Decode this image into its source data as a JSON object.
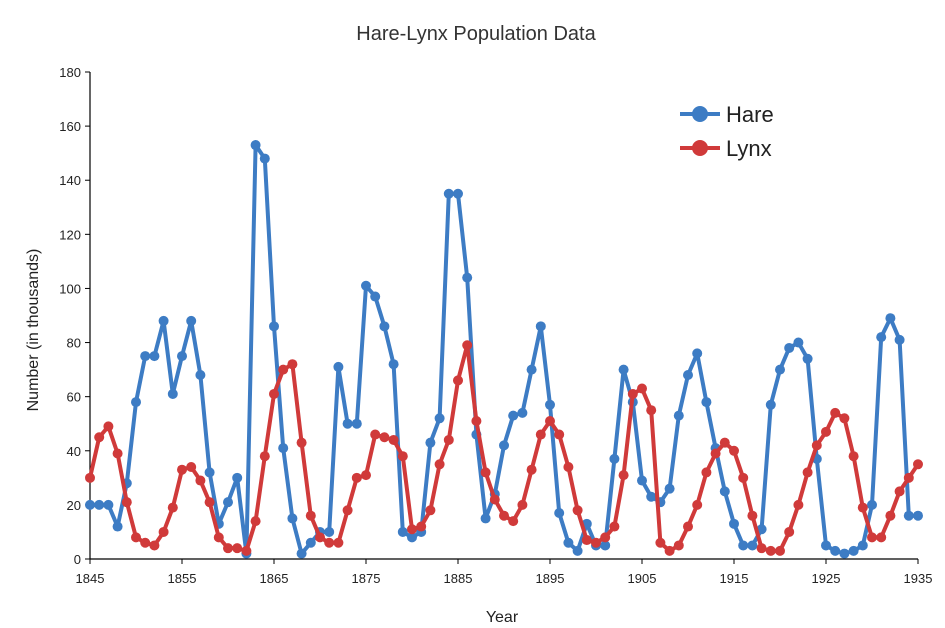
{
  "chart_data": {
    "type": "line",
    "title": "Hare-Lynx Population Data",
    "xlabel": "Year",
    "ylabel": "Number (in thousands)",
    "xlim": [
      1845,
      1935
    ],
    "ylim": [
      0,
      180
    ],
    "x_ticks": [
      1845,
      1855,
      1865,
      1875,
      1885,
      1895,
      1905,
      1915,
      1925,
      1935
    ],
    "y_ticks": [
      0,
      20,
      40,
      60,
      80,
      100,
      120,
      140,
      160,
      180
    ],
    "grid": false,
    "legend_position": "top-right",
    "x": [
      1845,
      1846,
      1847,
      1848,
      1849,
      1850,
      1851,
      1852,
      1853,
      1854,
      1855,
      1856,
      1857,
      1858,
      1859,
      1860,
      1861,
      1862,
      1863,
      1864,
      1865,
      1866,
      1867,
      1868,
      1869,
      1870,
      1871,
      1872,
      1873,
      1874,
      1875,
      1876,
      1877,
      1878,
      1879,
      1880,
      1881,
      1882,
      1883,
      1884,
      1885,
      1886,
      1887,
      1888,
      1889,
      1890,
      1891,
      1892,
      1893,
      1894,
      1895,
      1896,
      1897,
      1898,
      1899,
      1900,
      1901,
      1902,
      1903,
      1904,
      1905,
      1906,
      1907,
      1908,
      1909,
      1910,
      1911,
      1912,
      1913,
      1914,
      1915,
      1916,
      1917,
      1918,
      1919,
      1920,
      1921,
      1922,
      1923,
      1924,
      1925,
      1926,
      1927,
      1928,
      1929,
      1930,
      1931,
      1932,
      1933,
      1934,
      1935
    ],
    "series": [
      {
        "name": "Hare",
        "color": "#3d7cc4",
        "values": [
          20,
          20,
          20,
          12,
          28,
          58,
          75,
          75,
          88,
          61,
          75,
          88,
          68,
          32,
          13,
          21,
          30,
          2,
          153,
          148,
          86,
          41,
          15,
          2,
          6,
          10,
          10,
          71,
          50,
          50,
          101,
          97,
          86,
          72,
          10,
          8,
          10,
          43,
          52,
          135,
          135,
          104,
          46,
          15,
          24,
          42,
          53,
          54,
          70,
          86,
          57,
          17,
          6,
          3,
          13,
          5,
          5,
          37,
          70,
          58,
          29,
          23,
          21,
          26,
          53,
          68,
          76,
          58,
          41,
          25,
          13,
          5,
          5,
          11,
          57,
          70,
          78,
          80,
          74,
          37,
          5,
          3,
          2,
          3,
          5,
          20,
          82,
          89,
          81,
          16,
          16
        ]
      },
      {
        "name": "Lynx",
        "color": "#d03a3a",
        "values": [
          30,
          45,
          49,
          39,
          21,
          8,
          6,
          5,
          10,
          19,
          33,
          34,
          29,
          21,
          8,
          4,
          4,
          3,
          14,
          38,
          61,
          70,
          72,
          43,
          16,
          8,
          6,
          6,
          18,
          30,
          31,
          46,
          45,
          44,
          38,
          11,
          12,
          18,
          35,
          44,
          66,
          79,
          51,
          32,
          22,
          16,
          14,
          20,
          33,
          46,
          51,
          46,
          34,
          18,
          7,
          6,
          8,
          12,
          31,
          61,
          63,
          55,
          6,
          3,
          5,
          12,
          20,
          32,
          39,
          43,
          40,
          30,
          16,
          4,
          3,
          3,
          10,
          20,
          32,
          42,
          47,
          54,
          52,
          38,
          19,
          8,
          8,
          16,
          25,
          30,
          35
        ]
      }
    ]
  }
}
